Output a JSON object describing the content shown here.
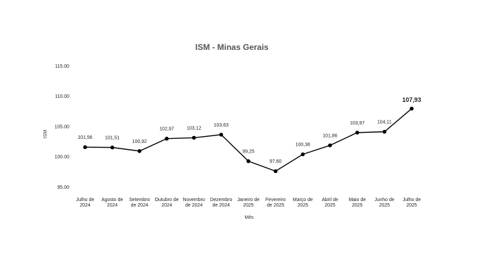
{
  "chart_data": {
    "type": "line",
    "title": "ISM - Minas Gerais",
    "xlabel": "Mês",
    "ylabel": "ISM",
    "ylim": [
      95,
      115
    ],
    "yticks": [
      "115.00",
      "110.00",
      "105.00",
      "100.00",
      "95.00"
    ],
    "ytick_values": [
      115,
      110,
      105,
      100,
      95
    ],
    "categories": [
      [
        "Julho de",
        "2024"
      ],
      [
        "Agosto de",
        "2024"
      ],
      [
        "Setembro",
        "de 2024"
      ],
      [
        "Outubro de",
        "2024"
      ],
      [
        "Novembro",
        "de 2024"
      ],
      [
        "Dezembro",
        "de 2024"
      ],
      [
        "Janeiro de",
        "2025"
      ],
      [
        "Fevereiro",
        "de 2025"
      ],
      [
        "Março de",
        "2025"
      ],
      [
        "Abril de",
        "2025"
      ],
      [
        "Maio de",
        "2025"
      ],
      [
        "Junho de",
        "2025"
      ],
      [
        "Julho de",
        "2025"
      ]
    ],
    "values": [
      101.56,
      101.51,
      100.92,
      102.97,
      103.12,
      103.63,
      99.25,
      97.6,
      100.38,
      101.86,
      103.97,
      104.11,
      107.93
    ],
    "data_labels": [
      "101,56",
      "101,51",
      "100,92",
      "102,97",
      "103,12",
      "103,63",
      "99,25",
      "97,60",
      "100,38",
      "101,86",
      "103,97",
      "104,11",
      "107,93"
    ],
    "grid": false,
    "line_color": "#000000"
  }
}
